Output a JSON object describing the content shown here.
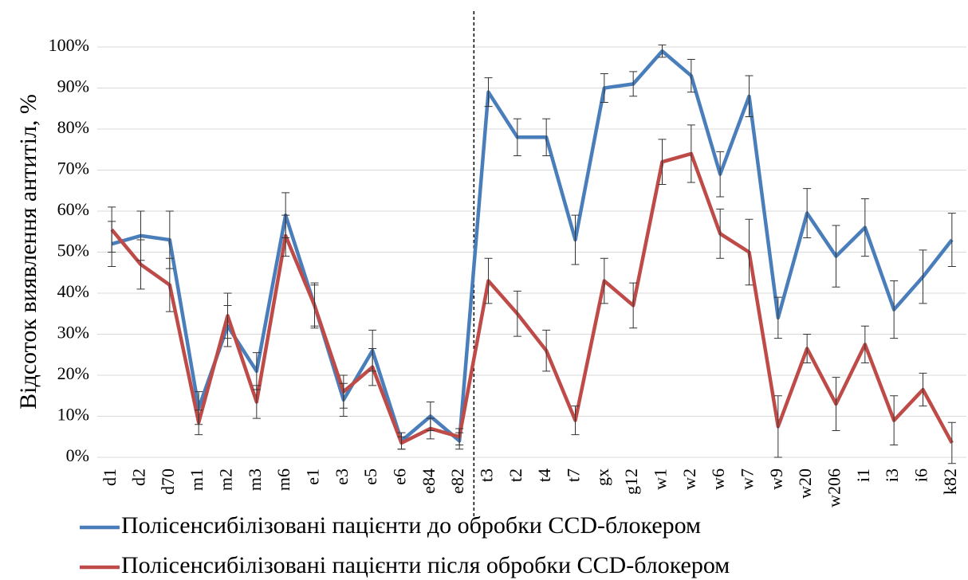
{
  "chart_data": {
    "type": "line",
    "y_label": "Відсоток виявлення антитіл, %",
    "categories": [
      "d1",
      "d2",
      "d70",
      "m1",
      "m2",
      "m3",
      "m6",
      "e1",
      "e3",
      "e5",
      "e6",
      "e84",
      "e82",
      "t3",
      "t2",
      "t4",
      "t7",
      "gx",
      "g12",
      "w1",
      "w2",
      "w6",
      "w7",
      "w9",
      "w20",
      "w206",
      "i1",
      "i3",
      "i6",
      "k82"
    ],
    "series": [
      {
        "name": "Полісенсибілізовані  пацієнти до обробки CCD-блокером",
        "color": "#4a7ebb",
        "values": [
          52,
          54,
          53,
          12,
          32,
          21,
          59,
          37,
          14,
          26,
          4,
          10,
          4,
          89,
          78,
          78,
          53,
          90,
          91,
          99,
          93,
          69,
          88,
          34,
          59.5,
          49,
          56,
          36,
          44,
          53
        ],
        "errors": [
          5.5,
          6,
          7,
          4,
          5,
          4.5,
          5.5,
          5.5,
          4,
          5,
          2,
          3.5,
          2,
          3.5,
          4.5,
          4.5,
          6,
          3.5,
          3,
          1.5,
          4,
          5.5,
          5,
          5,
          6,
          7.5,
          7,
          7,
          6.5,
          6.5
        ]
      },
      {
        "name": "Полісенсибілізовані  пацієнти після обробки CCD-блокером",
        "color": "#be4b48",
        "values": [
          55.5,
          47,
          42,
          8.5,
          34.5,
          13.5,
          54,
          37,
          16,
          22,
          3.5,
          7,
          5,
          43,
          35,
          26,
          9,
          43,
          37,
          72,
          74,
          54.5,
          50,
          7.5,
          26.5,
          13,
          27.5,
          9,
          16.5,
          3.5
        ],
        "errors": [
          5.5,
          6,
          6.5,
          3,
          5.5,
          4,
          5,
          5,
          4,
          4.5,
          1.5,
          2.5,
          2,
          5.5,
          5.5,
          5,
          3.5,
          5.5,
          5.5,
          5.5,
          7,
          6,
          8,
          7.5,
          3.5,
          6.5,
          4.5,
          6,
          4,
          5
        ]
      }
    ],
    "ylim": [
      0,
      100
    ],
    "yticks": [
      {
        "value": 0,
        "label": "0%"
      },
      {
        "value": 10,
        "label": "10%"
      },
      {
        "value": 20,
        "label": "20%"
      },
      {
        "value": 30,
        "label": "30%"
      },
      {
        "value": 40,
        "label": "40%"
      },
      {
        "value": 50,
        "label": "50%"
      },
      {
        "value": 60,
        "label": "60%"
      },
      {
        "value": 70,
        "label": "70%"
      },
      {
        "value": 80,
        "label": "80%"
      },
      {
        "value": 90,
        "label": "90%"
      },
      {
        "value": 100,
        "label": "100%"
      }
    ],
    "grid": true
  }
}
